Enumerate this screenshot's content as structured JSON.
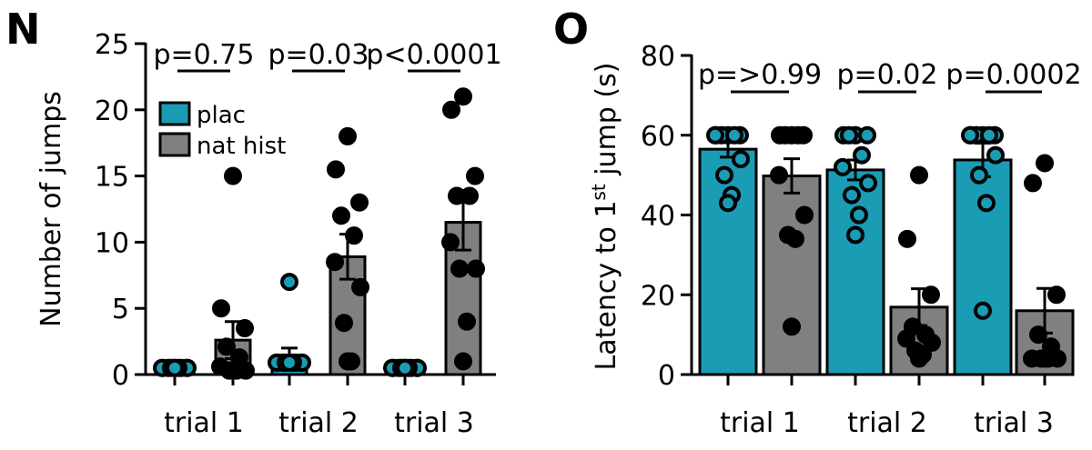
{
  "colors": {
    "plac": "#1a9cb4",
    "nat_hist": "#808080",
    "outline": "#000000"
  },
  "panels": {
    "N": {
      "label": "N"
    },
    "O": {
      "label": "O"
    }
  },
  "legend": {
    "entries": [
      "plac",
      "nat hist"
    ]
  },
  "chart_data": [
    {
      "type": "bar",
      "panel": "N",
      "ylabel": "Number of jumps",
      "ylim": [
        0,
        25
      ],
      "yticks": [
        0,
        5,
        10,
        15,
        20,
        25
      ],
      "categories": [
        "trial 1",
        "trial 2",
        "trial 3"
      ],
      "series": [
        {
          "name": "plac",
          "values": [
            0.4,
            1.3,
            0.4
          ],
          "sem": [
            0.3,
            0.7,
            0.3
          ],
          "points": [
            [
              0.5,
              0.5,
              0.5,
              0.5,
              0.5,
              0.5,
              0.5,
              0.5,
              0.5,
              0.5
            ],
            [
              7,
              0.9,
              0.9,
              0.9,
              0.9,
              0.9,
              0.9,
              0.9,
              0.9,
              0.9
            ],
            [
              0.5,
              0.5,
              0.5,
              0.5,
              0.5,
              0.5,
              0.5,
              0.5,
              0.5,
              0.5
            ]
          ]
        },
        {
          "name": "nat hist",
          "values": [
            2.6,
            8.9,
            11.5
          ],
          "sem": [
            1.4,
            1.7,
            2.1
          ],
          "points": [
            [
              15,
              5,
              3.5,
              2.1,
              1.3,
              0.6,
              0.3,
              0.3,
              0.3,
              0.3
            ],
            [
              18,
              15.5,
              13,
              12,
              10.5,
              8.5,
              6.6,
              3.9,
              1,
              1
            ],
            [
              21,
              20,
              15,
              13.5,
              13.5,
              10,
              8,
              8,
              4,
              1
            ]
          ]
        }
      ],
      "significance": [
        "p=0.75",
        "p=0.03",
        "p<0.0001"
      ]
    },
    {
      "type": "bar",
      "panel": "O",
      "ylabel": "Latency to 1st jump (s)",
      "ylabel_main": "Latency to 1",
      "ylabel_sup": "st",
      "ylabel_end": " jump (s)",
      "ylim": [
        0,
        80
      ],
      "yticks": [
        0,
        20,
        40,
        60,
        80
      ],
      "categories": [
        "trial 1",
        "trial 2",
        "trial 3"
      ],
      "series": [
        {
          "name": "plac",
          "values": [
            56.5,
            51.3,
            53.8
          ],
          "sem": [
            2,
            2.5,
            4.2
          ],
          "points": [
            [
              60,
              60,
              60,
              60,
              60,
              60,
              54,
              50,
              45,
              43
            ],
            [
              60,
              60,
              60,
              60,
              55,
              52,
              48,
              45,
              40,
              35
            ],
            [
              60,
              60,
              60,
              60,
              60,
              60,
              55,
              50,
              43,
              16
            ]
          ]
        },
        {
          "name": "nat hist",
          "values": [
            49.8,
            16.9,
            16
          ],
          "sem": [
            4.3,
            4.6,
            5.6
          ],
          "points": [
            [
              60,
              60,
              60,
              60,
              60,
              50,
              40,
              35,
              34,
              12
            ],
            [
              50,
              34,
              20,
              12,
              10,
              9,
              8,
              6,
              5,
              4
            ],
            [
              53,
              48,
              20,
              10,
              7,
              4,
              4,
              4,
              4,
              4
            ]
          ]
        }
      ],
      "significance": [
        "p=>0.99",
        "p=0.02",
        "p=0.0002"
      ]
    }
  ]
}
